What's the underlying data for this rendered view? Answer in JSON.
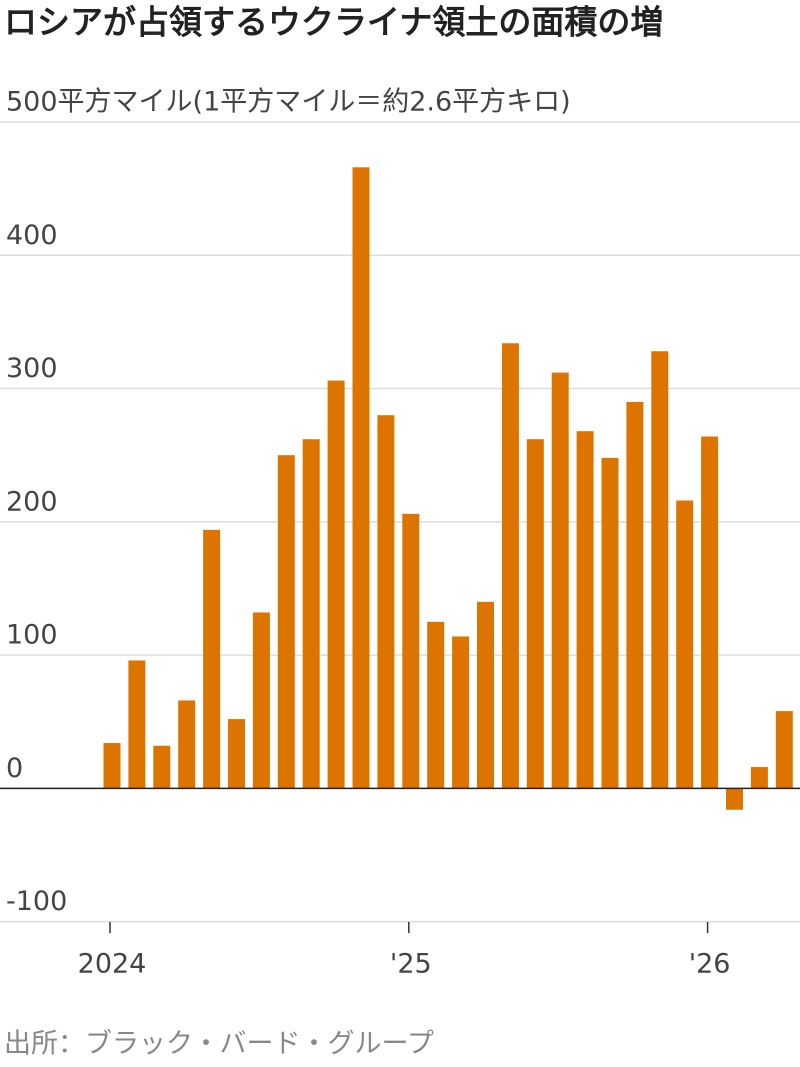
{
  "chart_data": {
    "type": "bar",
    "title": "ロシアが占領するウクライナ領土の面積の増",
    "source": "出所：ブラック・バード・グループ",
    "categories": [
      "2024",
      null,
      null,
      null,
      null,
      null,
      null,
      null,
      null,
      null,
      null,
      null,
      "'25",
      null,
      null,
      null,
      null,
      null,
      null,
      null,
      null,
      null,
      null,
      null,
      "'26",
      null,
      null,
      null
    ],
    "values": [
      34,
      96,
      32,
      66,
      194,
      52,
      132,
      250,
      262,
      306,
      466,
      280,
      206,
      125,
      114,
      140,
      334,
      262,
      312,
      268,
      248,
      290,
      328,
      216,
      264,
      -16,
      16,
      58
    ],
    "color": "#de7400",
    "ylim": [
      -110,
      500
    ],
    "yticks": [
      -100,
      0,
      100,
      200,
      300,
      400,
      {
        "value": 500,
        "label": "500平方マイル(1平方マイル＝約2.6平方キロ)"
      }
    ],
    "grid": true
  }
}
